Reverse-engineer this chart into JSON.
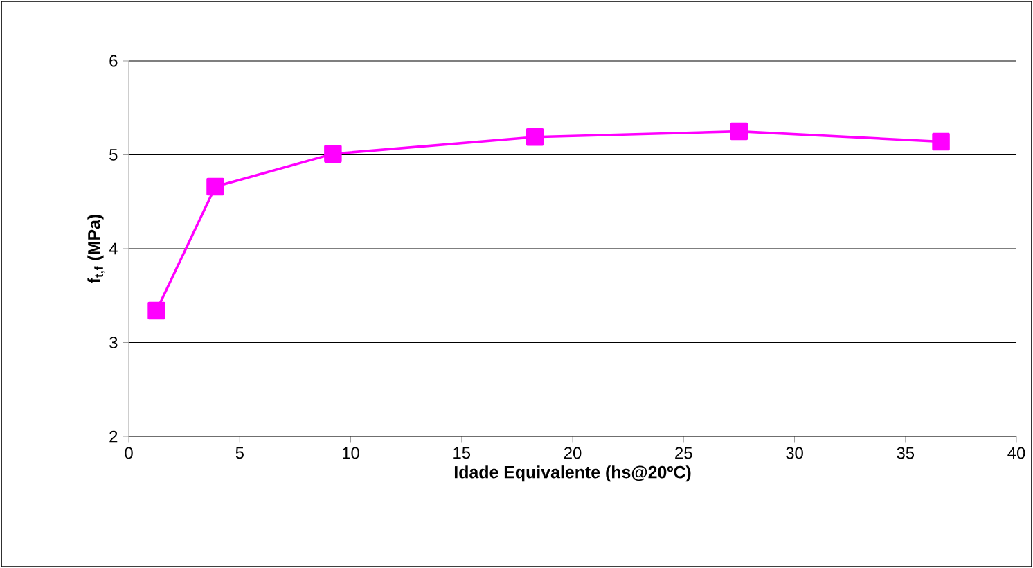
{
  "chart_data": {
    "type": "line",
    "xlabel": "Idade Equivalente (hs@20ºC)",
    "ylabel": "f$_{t,f}$ (MPa)",
    "x": [
      1.25,
      3.9,
      9.2,
      18.3,
      27.5,
      36.6
    ],
    "series": [
      {
        "color": "#ff00ff",
        "values": [
          3.34,
          4.66,
          5.01,
          5.19,
          5.25,
          5.14
        ]
      }
    ],
    "xlim": [
      0,
      40
    ],
    "xticks": [
      0,
      5,
      10,
      15,
      20,
      25,
      30,
      35,
      40
    ],
    "ylim": [
      2,
      6
    ],
    "yticks": [
      2,
      3,
      4,
      5,
      6
    ],
    "grid": "y",
    "marker": "square",
    "line_style": "solid"
  }
}
